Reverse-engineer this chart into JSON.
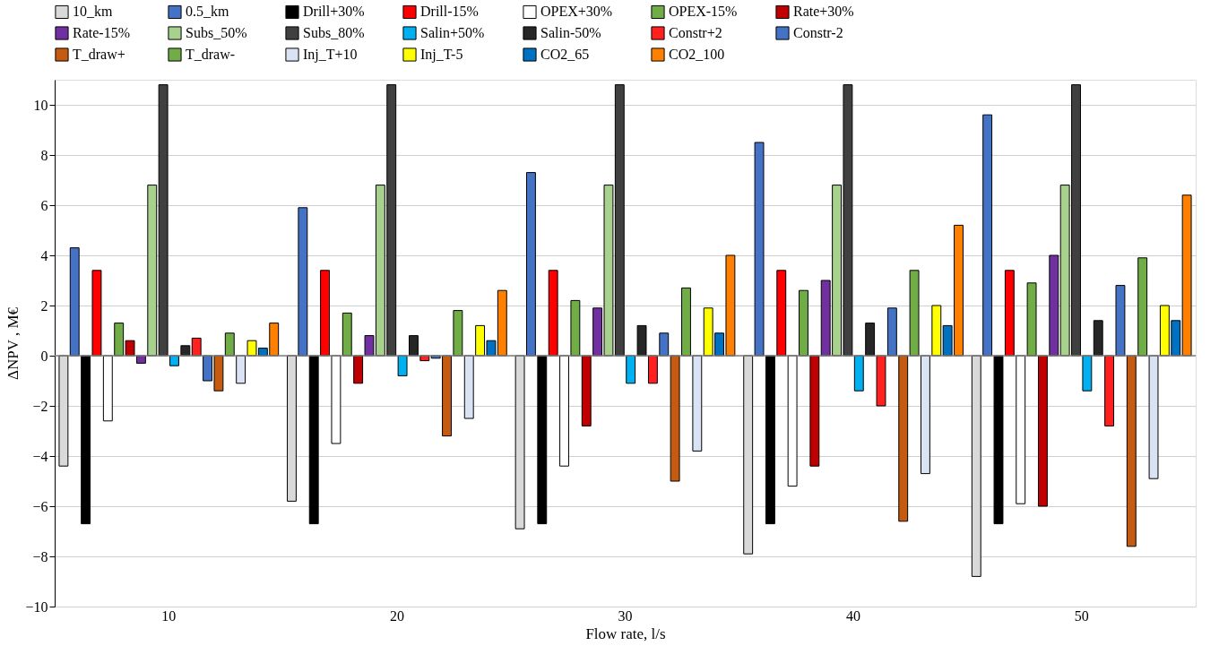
{
  "chart_data": {
    "type": "bar",
    "xlabel": "Flow rate, l/s",
    "ylabel": "ΔNPV , M€",
    "categories": [
      "10",
      "20",
      "30",
      "40",
      "50"
    ],
    "series": [
      {
        "name": "10_km",
        "color": "#d9d9d9",
        "values": [
          -4.4,
          -5.8,
          -6.9,
          -7.9,
          -8.8
        ]
      },
      {
        "name": "0.5_km",
        "color": "#4472c4",
        "values": [
          4.3,
          5.9,
          7.3,
          8.5,
          9.6
        ]
      },
      {
        "name": "Drill+30%",
        "color": "#000000",
        "values": [
          -6.7,
          -6.7,
          -6.7,
          -6.7,
          -6.7
        ]
      },
      {
        "name": "Drill-15%",
        "color": "#ff0000",
        "values": [
          3.4,
          3.4,
          3.4,
          3.4,
          3.4
        ]
      },
      {
        "name": "OPEX+30%",
        "color": "#ffffff",
        "values": [
          -2.6,
          -3.5,
          -4.4,
          -5.2,
          -5.9
        ]
      },
      {
        "name": "OPEX-15%",
        "color": "#70ad47",
        "values": [
          1.3,
          1.7,
          2.2,
          2.6,
          2.9
        ]
      },
      {
        "name": "Rate+30%",
        "color": "#c00000",
        "values": [
          0.6,
          -1.1,
          -2.8,
          -4.4,
          -6.0
        ]
      },
      {
        "name": "Rate-15%",
        "color": "#7030a0",
        "values": [
          -0.3,
          0.8,
          1.9,
          3.0,
          4.0
        ]
      },
      {
        "name": "Subs_50%",
        "color": "#a9d18e",
        "values": [
          6.8,
          6.8,
          6.8,
          6.8,
          6.8
        ]
      },
      {
        "name": "Subs_80%",
        "color": "#404040",
        "values": [
          10.8,
          10.8,
          10.8,
          10.8,
          10.8
        ]
      },
      {
        "name": "Salin+50%",
        "color": "#00b0f0",
        "values": [
          -0.4,
          -0.8,
          -1.1,
          -1.4,
          -1.4
        ]
      },
      {
        "name": "Salin-50%",
        "color": "#262626",
        "values": [
          0.4,
          0.8,
          1.2,
          1.3,
          1.4
        ]
      },
      {
        "name": "Constr+2",
        "color": "#ff2020",
        "values": [
          0.7,
          -0.2,
          -1.1,
          -2.0,
          -2.8
        ]
      },
      {
        "name": "Constr-2",
        "color": "#4472c4",
        "values": [
          -1.0,
          -0.1,
          0.9,
          1.9,
          2.8
        ]
      },
      {
        "name": "T_draw+",
        "color": "#c55a11",
        "values": [
          -1.4,
          -3.2,
          -5.0,
          -6.6,
          -7.6
        ]
      },
      {
        "name": "T_draw-",
        "color": "#70ad47",
        "values": [
          0.9,
          1.8,
          2.7,
          3.4,
          3.9
        ]
      },
      {
        "name": "Inj_T+10",
        "color": "#dae3f3",
        "values": [
          -1.1,
          -2.5,
          -3.8,
          -4.7,
          -4.9
        ]
      },
      {
        "name": "Inj_T-5",
        "color": "#ffff00",
        "values": [
          0.6,
          1.2,
          1.9,
          2.0,
          2.0
        ]
      },
      {
        "name": "CO2_65",
        "color": "#0070c0",
        "values": [
          0.3,
          0.6,
          0.9,
          1.2,
          1.4
        ]
      },
      {
        "name": "CO2_100",
        "color": "#ff8000",
        "values": [
          1.3,
          2.6,
          4.0,
          5.2,
          6.4
        ]
      }
    ],
    "ylim": [
      -10,
      11
    ],
    "yticks": [
      -10,
      -8,
      -6,
      -4,
      -2,
      0,
      2,
      4,
      6,
      8,
      10
    ],
    "grid": "y",
    "legend": "top"
  }
}
